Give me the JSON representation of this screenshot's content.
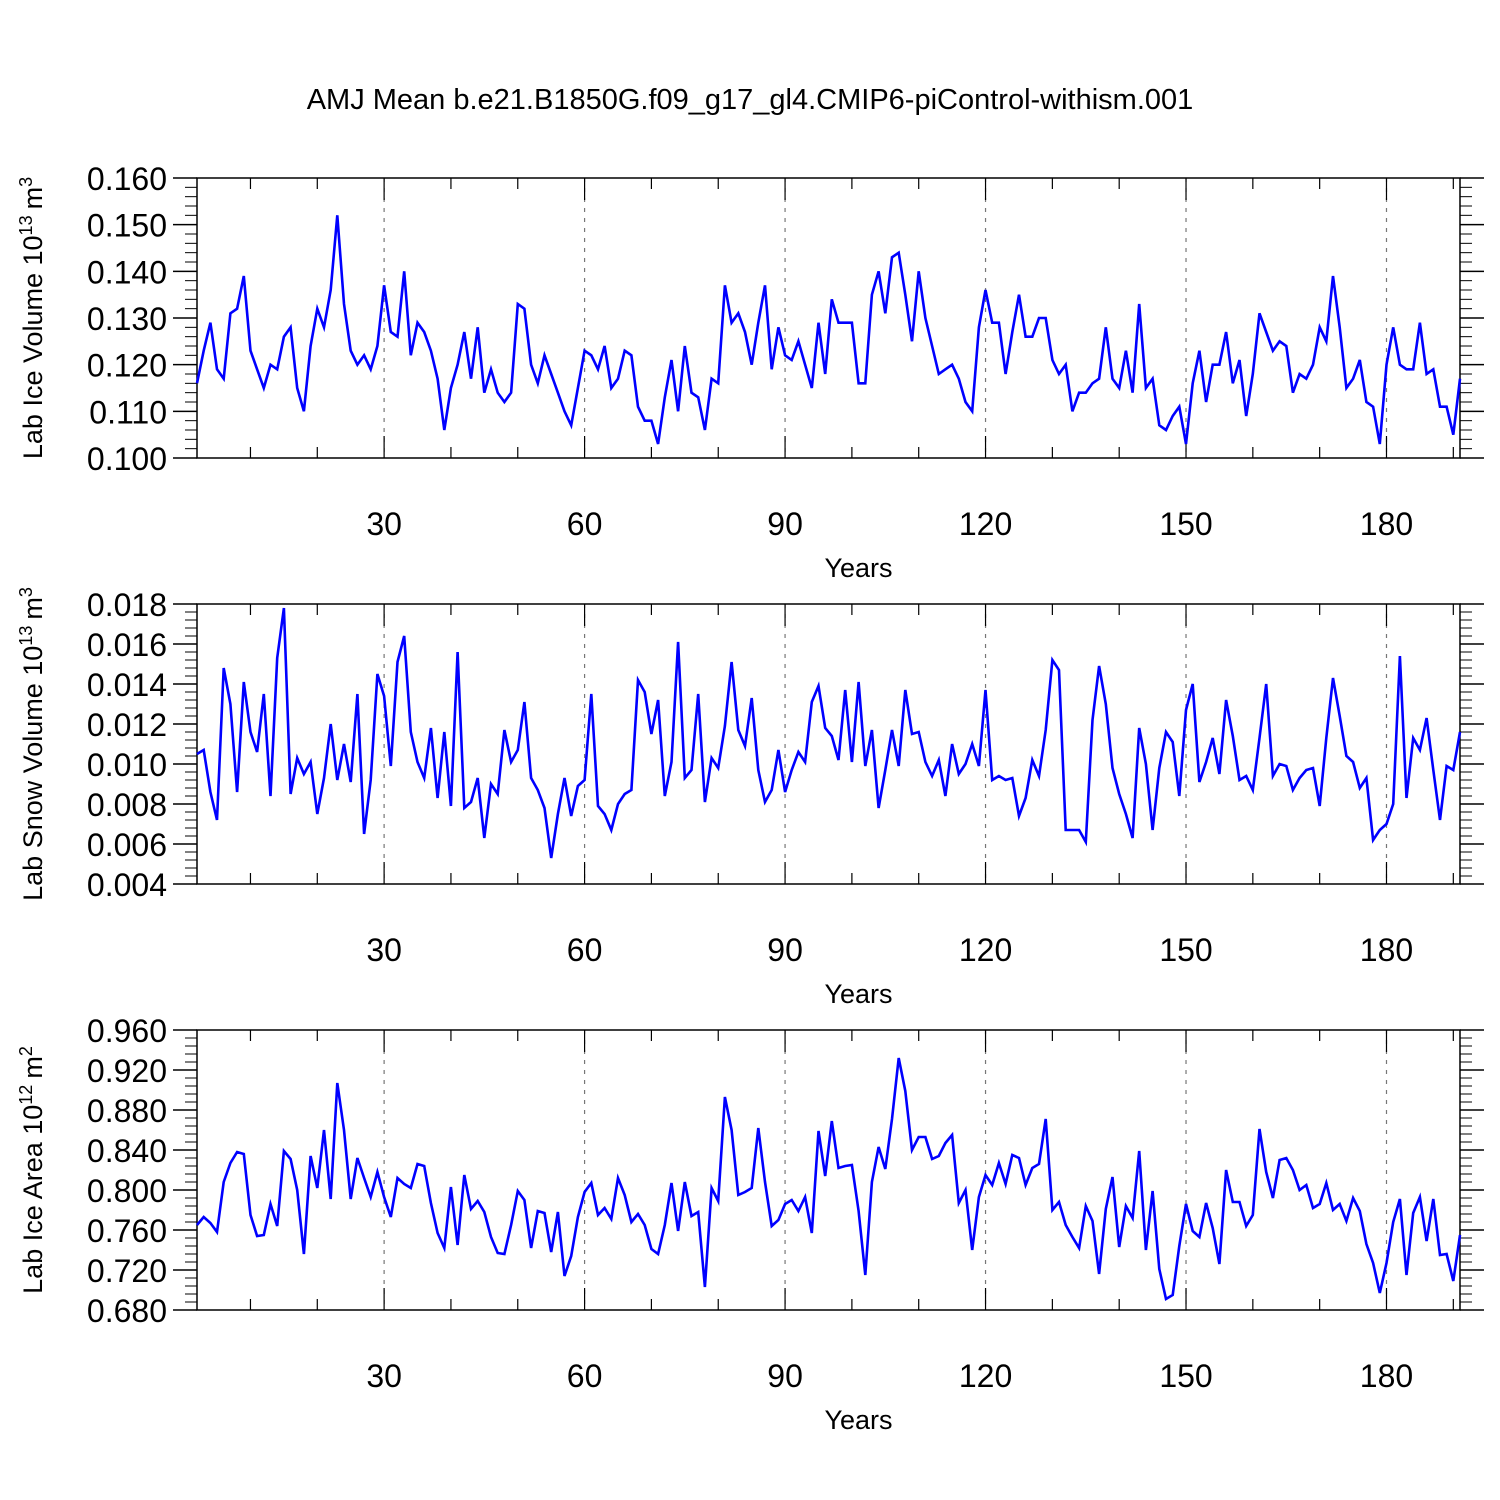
{
  "figure": {
    "title": "AMJ Mean b.e21.B1850G.f09_g17_gl4.CMIP6-piControl-withism.001"
  },
  "colors": {
    "line": "#0000ff",
    "axis": "#000000",
    "grid": "#777777",
    "background": "#ffffff"
  },
  "chart_data": [
    {
      "type": "line",
      "xlabel": "Years",
      "ylabel": "Lab Ice Volume 10",
      "ylabel_exp": "13",
      "ylabel_unit": "m",
      "ylabel_unit_exp": "3",
      "ylim": [
        0.1,
        0.16
      ],
      "yticks": [
        "0.100",
        "0.110",
        "0.120",
        "0.130",
        "0.140",
        "0.150",
        "0.160"
      ],
      "xlim": [
        2,
        191
      ],
      "xticks": [
        30,
        60,
        90,
        120,
        150,
        180
      ],
      "grid": "vertical dashed at major x ticks",
      "series": [
        {
          "x_start": 2,
          "x_step": 1,
          "values": [
            0.116,
            0.123,
            0.129,
            0.119,
            0.117,
            0.131,
            0.132,
            0.139,
            0.123,
            0.119,
            0.115,
            0.12,
            0.119,
            0.126,
            0.128,
            0.115,
            0.11,
            0.124,
            0.132,
            0.128,
            0.136,
            0.152,
            0.133,
            0.123,
            0.12,
            0.122,
            0.119,
            0.124,
            0.137,
            0.127,
            0.126,
            0.14,
            0.122,
            0.129,
            0.127,
            0.123,
            0.117,
            0.106,
            0.115,
            0.12,
            0.127,
            0.117,
            0.128,
            0.114,
            0.119,
            0.114,
            0.112,
            0.114,
            0.133,
            0.132,
            0.12,
            0.116,
            0.122,
            0.118,
            0.114,
            0.11,
            0.107,
            0.115,
            0.123,
            0.122,
            0.119,
            0.124,
            0.115,
            0.117,
            0.123,
            0.122,
            0.111,
            0.108,
            0.108,
            0.103,
            0.113,
            0.121,
            0.11,
            0.124,
            0.114,
            0.113,
            0.106,
            0.117,
            0.116,
            0.137,
            0.129,
            0.131,
            0.127,
            0.12,
            0.129,
            0.137,
            0.119,
            0.128,
            0.122,
            0.121,
            0.125,
            0.12,
            0.115,
            0.129,
            0.118,
            0.134,
            0.129,
            0.129,
            0.129,
            0.116,
            0.116,
            0.135,
            0.14,
            0.131,
            0.143,
            0.144,
            0.135,
            0.125,
            0.14,
            0.13,
            0.124,
            0.118,
            0.119,
            0.12,
            0.117,
            0.112,
            0.11,
            0.128,
            0.136,
            0.129,
            0.129,
            0.118,
            0.127,
            0.135,
            0.126,
            0.126,
            0.13,
            0.13,
            0.121,
            0.118,
            0.12,
            0.11,
            0.114,
            0.114,
            0.116,
            0.117,
            0.128,
            0.117,
            0.115,
            0.123,
            0.114,
            0.133,
            0.115,
            0.117,
            0.107,
            0.106,
            0.109,
            0.111,
            0.103,
            0.116,
            0.123,
            0.112,
            0.12,
            0.12,
            0.127,
            0.116,
            0.121,
            0.109,
            0.118,
            0.131,
            0.127,
            0.123,
            0.125,
            0.124,
            0.114,
            0.118,
            0.117,
            0.12,
            0.128,
            0.125,
            0.139,
            0.128,
            0.115,
            0.117,
            0.121,
            0.112,
            0.111,
            0.103,
            0.12,
            0.128,
            0.12,
            0.119,
            0.119,
            0.129,
            0.118,
            0.119,
            0.111,
            0.111,
            0.105,
            0.117
          ]
        }
      ]
    },
    {
      "type": "line",
      "xlabel": "Years",
      "ylabel": "Lab Snow Volume 10",
      "ylabel_exp": "13",
      "ylabel_unit": "m",
      "ylabel_unit_exp": "3",
      "ylim": [
        0.004,
        0.018
      ],
      "yticks": [
        "0.004",
        "0.006",
        "0.008",
        "0.010",
        "0.012",
        "0.014",
        "0.016",
        "0.018"
      ],
      "xlim": [
        2,
        191
      ],
      "xticks": [
        30,
        60,
        90,
        120,
        150,
        180
      ],
      "grid": "vertical dashed at major x ticks",
      "series": [
        {
          "x_start": 2,
          "x_step": 1,
          "values": [
            0.0105,
            0.0107,
            0.0086,
            0.0072,
            0.0148,
            0.013,
            0.0086,
            0.0141,
            0.0116,
            0.0106,
            0.0135,
            0.0084,
            0.0153,
            0.0178,
            0.0085,
            0.0103,
            0.0095,
            0.0101,
            0.0075,
            0.0093,
            0.012,
            0.0092,
            0.011,
            0.0091,
            0.0135,
            0.0065,
            0.0092,
            0.0145,
            0.0134,
            0.0099,
            0.0151,
            0.0164,
            0.0116,
            0.0101,
            0.0093,
            0.0118,
            0.0083,
            0.0116,
            0.0079,
            0.0156,
            0.0078,
            0.0081,
            0.0093,
            0.0063,
            0.009,
            0.0085,
            0.0117,
            0.0101,
            0.0107,
            0.0131,
            0.0093,
            0.0087,
            0.0078,
            0.0053,
            0.0075,
            0.0093,
            0.0074,
            0.0089,
            0.0092,
            0.0135,
            0.0079,
            0.0075,
            0.0067,
            0.008,
            0.0085,
            0.0087,
            0.0142,
            0.0136,
            0.0115,
            0.0132,
            0.0084,
            0.0101,
            0.0161,
            0.0093,
            0.0097,
            0.0135,
            0.0081,
            0.0103,
            0.0098,
            0.0119,
            0.0151,
            0.0117,
            0.0109,
            0.0133,
            0.0097,
            0.0081,
            0.0087,
            0.0107,
            0.0086,
            0.0097,
            0.0106,
            0.0101,
            0.0131,
            0.0139,
            0.0118,
            0.0114,
            0.0102,
            0.0137,
            0.0101,
            0.0141,
            0.0099,
            0.0117,
            0.0078,
            0.0097,
            0.0117,
            0.0099,
            0.0137,
            0.0115,
            0.0116,
            0.0101,
            0.0094,
            0.0102,
            0.0084,
            0.011,
            0.0095,
            0.01,
            0.011,
            0.0099,
            0.0137,
            0.0092,
            0.0094,
            0.0092,
            0.0093,
            0.0074,
            0.0083,
            0.0102,
            0.0094,
            0.0117,
            0.0152,
            0.0147,
            0.0067,
            0.0067,
            0.0067,
            0.0061,
            0.0122,
            0.0149,
            0.013,
            0.0098,
            0.0085,
            0.0075,
            0.0063,
            0.0118,
            0.01,
            0.0067,
            0.0098,
            0.0116,
            0.0111,
            0.0084,
            0.0127,
            0.014,
            0.0091,
            0.0101,
            0.0113,
            0.0095,
            0.0132,
            0.0114,
            0.0092,
            0.0094,
            0.0087,
            0.0113,
            0.014,
            0.0094,
            0.01,
            0.0099,
            0.0087,
            0.0093,
            0.0097,
            0.0098,
            0.0079,
            0.0113,
            0.0143,
            0.0124,
            0.0104,
            0.0101,
            0.0088,
            0.0093,
            0.0062,
            0.0067,
            0.007,
            0.008,
            0.0154,
            0.0083,
            0.0113,
            0.0107,
            0.0123,
            0.0097,
            0.0072,
            0.0099,
            0.0097,
            0.0116
          ]
        }
      ]
    },
    {
      "type": "line",
      "xlabel": "Years",
      "ylabel": "Lab Ice Area 10",
      "ylabel_exp": "12",
      "ylabel_unit": "m",
      "ylabel_unit_exp": "2",
      "ylim": [
        0.68,
        0.96
      ],
      "yticks": [
        "0.680",
        "0.720",
        "0.760",
        "0.800",
        "0.840",
        "0.880",
        "0.920",
        "0.960"
      ],
      "xlim": [
        2,
        191
      ],
      "xticks": [
        30,
        60,
        90,
        120,
        150,
        180
      ],
      "grid": "vertical dashed at major x ticks",
      "series": [
        {
          "x_start": 2,
          "x_step": 1,
          "values": [
            0.765,
            0.773,
            0.767,
            0.758,
            0.808,
            0.827,
            0.838,
            0.836,
            0.775,
            0.754,
            0.755,
            0.786,
            0.764,
            0.839,
            0.831,
            0.8,
            0.736,
            0.834,
            0.802,
            0.86,
            0.791,
            0.907,
            0.86,
            0.791,
            0.832,
            0.812,
            0.793,
            0.818,
            0.793,
            0.773,
            0.812,
            0.806,
            0.802,
            0.826,
            0.824,
            0.787,
            0.757,
            0.742,
            0.803,
            0.745,
            0.815,
            0.781,
            0.789,
            0.778,
            0.753,
            0.737,
            0.736,
            0.765,
            0.799,
            0.79,
            0.742,
            0.779,
            0.777,
            0.738,
            0.778,
            0.714,
            0.734,
            0.773,
            0.798,
            0.807,
            0.775,
            0.782,
            0.771,
            0.812,
            0.795,
            0.768,
            0.776,
            0.765,
            0.741,
            0.736,
            0.765,
            0.807,
            0.759,
            0.808,
            0.774,
            0.778,
            0.703,
            0.802,
            0.789,
            0.893,
            0.86,
            0.795,
            0.798,
            0.802,
            0.862,
            0.808,
            0.764,
            0.77,
            0.786,
            0.79,
            0.779,
            0.793,
            0.757,
            0.859,
            0.814,
            0.869,
            0.822,
            0.824,
            0.825,
            0.779,
            0.715,
            0.808,
            0.843,
            0.821,
            0.871,
            0.932,
            0.899,
            0.84,
            0.853,
            0.853,
            0.831,
            0.834,
            0.847,
            0.855,
            0.787,
            0.8,
            0.74,
            0.793,
            0.815,
            0.805,
            0.827,
            0.806,
            0.835,
            0.832,
            0.805,
            0.822,
            0.826,
            0.871,
            0.78,
            0.788,
            0.765,
            0.753,
            0.742,
            0.784,
            0.769,
            0.716,
            0.781,
            0.813,
            0.743,
            0.784,
            0.772,
            0.839,
            0.74,
            0.799,
            0.721,
            0.691,
            0.695,
            0.744,
            0.786,
            0.759,
            0.753,
            0.787,
            0.762,
            0.726,
            0.82,
            0.788,
            0.788,
            0.764,
            0.775,
            0.861,
            0.818,
            0.792,
            0.83,
            0.832,
            0.82,
            0.8,
            0.805,
            0.782,
            0.786,
            0.807,
            0.78,
            0.786,
            0.769,
            0.792,
            0.779,
            0.746,
            0.727,
            0.697,
            0.727,
            0.768,
            0.791,
            0.715,
            0.777,
            0.793,
            0.749,
            0.791,
            0.735,
            0.736,
            0.709,
            0.755
          ]
        }
      ]
    }
  ]
}
